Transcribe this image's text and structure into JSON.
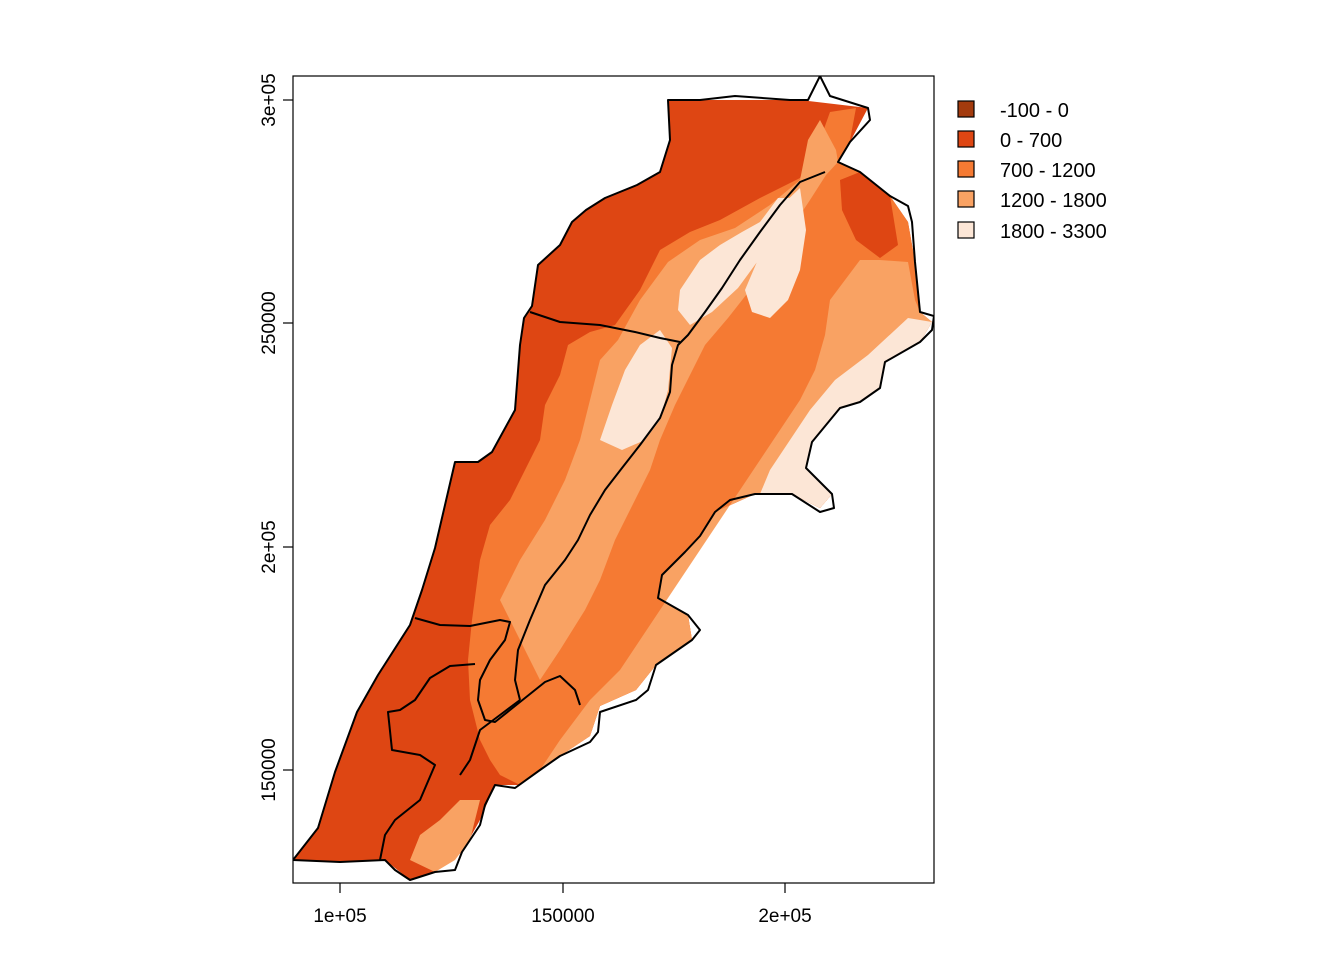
{
  "map": {
    "type": "choropleth raster map",
    "x_axis": {
      "ticks": [
        "1e+05",
        "150000",
        "2e+05"
      ],
      "values": [
        100000,
        150000,
        200000
      ]
    },
    "y_axis": {
      "ticks": [
        "150000",
        "2e+05",
        "250000",
        "3e+05"
      ],
      "values": [
        150000,
        200000,
        250000,
        300000
      ]
    },
    "legend_position": "top-right, outside plot area",
    "legend": [
      {
        "label": "-100 - 0",
        "color": "#A33B0E"
      },
      {
        "label": "0 - 700",
        "color": "#DE4613"
      },
      {
        "label": "700 - 1200",
        "color": "#F57A33"
      },
      {
        "label": "1200 - 1800",
        "color": "#F9A263"
      },
      {
        "label": "1800 - 3300",
        "color": "#FCE6D6"
      }
    ],
    "colors": {
      "outline": "#000000",
      "background": "#FFFFFF"
    }
  }
}
